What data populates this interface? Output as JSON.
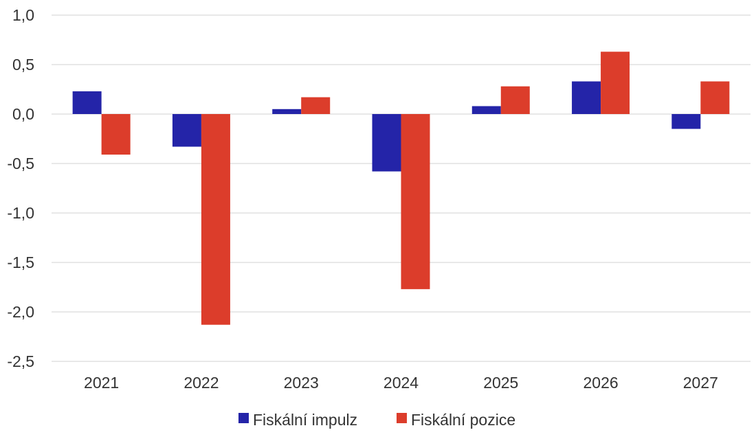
{
  "chart_data": {
    "type": "bar",
    "title": "",
    "xlabel": "",
    "ylabel": "",
    "categories": [
      "2021",
      "2022",
      "2023",
      "2024",
      "2025",
      "2026",
      "2027"
    ],
    "series": [
      {
        "name": "Fiskální impulz",
        "color": "#2424a8",
        "values": [
          0.23,
          -0.33,
          0.05,
          -0.58,
          0.08,
          0.33,
          -0.15
        ]
      },
      {
        "name": "Fiskální pozice",
        "color": "#dc3d2b",
        "values": [
          -0.41,
          -2.13,
          0.17,
          -1.77,
          0.28,
          0.63,
          0.33
        ]
      }
    ],
    "ylim": [
      -2.5,
      1.0
    ],
    "yticks": [
      1.0,
      0.5,
      0.0,
      -0.5,
      -1.0,
      -1.5,
      -2.0,
      -2.5
    ],
    "ytick_labels": [
      "1,0",
      "0,5",
      "0,0",
      "-0,5",
      "-1,0",
      "-1,5",
      "-2,0",
      "-2,5"
    ],
    "grid": true,
    "legend_position": "bottom"
  }
}
